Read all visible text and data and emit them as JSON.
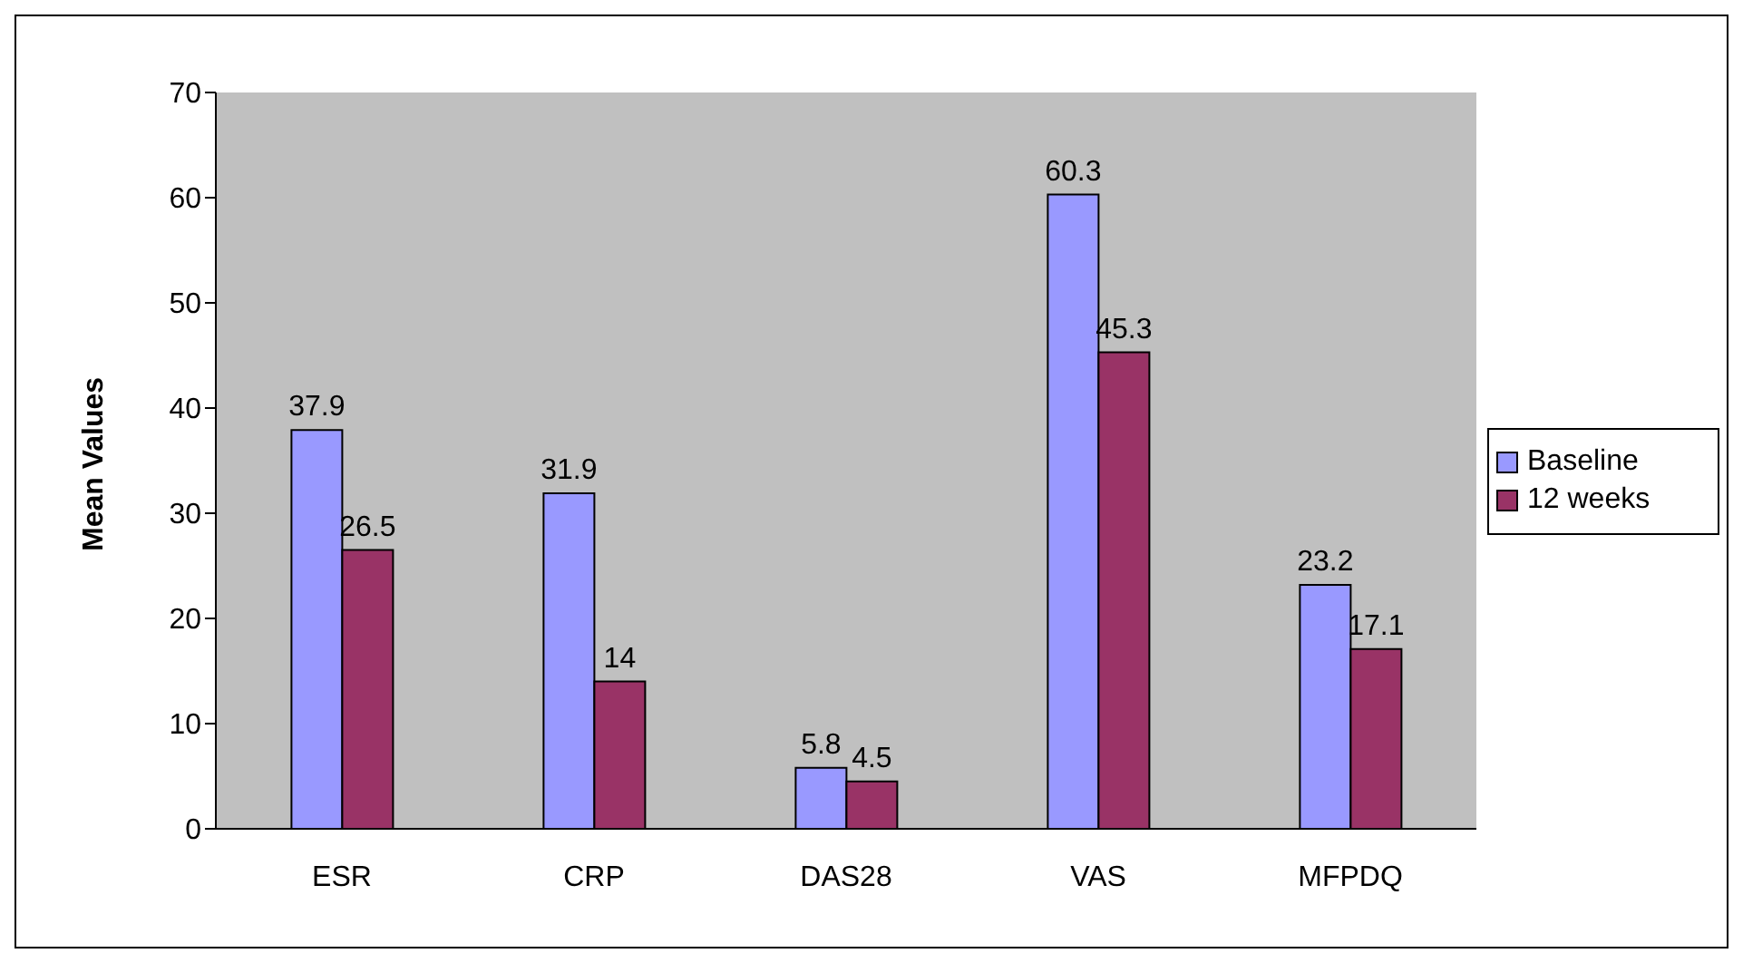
{
  "chart_data": {
    "type": "bar",
    "ylabel": "Mean Values",
    "categories": [
      "ESR",
      "CRP",
      "DAS28",
      "VAS",
      "MFPDQ"
    ],
    "series": [
      {
        "name": "Baseline",
        "color": "#9999ff",
        "values": [
          37.9,
          31.9,
          5.8,
          60.3,
          23.2
        ]
      },
      {
        "name": "12 weeks",
        "color": "#993366",
        "values": [
          26.5,
          14,
          4.5,
          45.3,
          17.1
        ]
      }
    ],
    "ylim": [
      0,
      70
    ],
    "yticks": [
      0,
      10,
      20,
      30,
      40,
      50,
      60,
      70
    ],
    "grid": false,
    "legend": "right",
    "data_labels": true
  }
}
